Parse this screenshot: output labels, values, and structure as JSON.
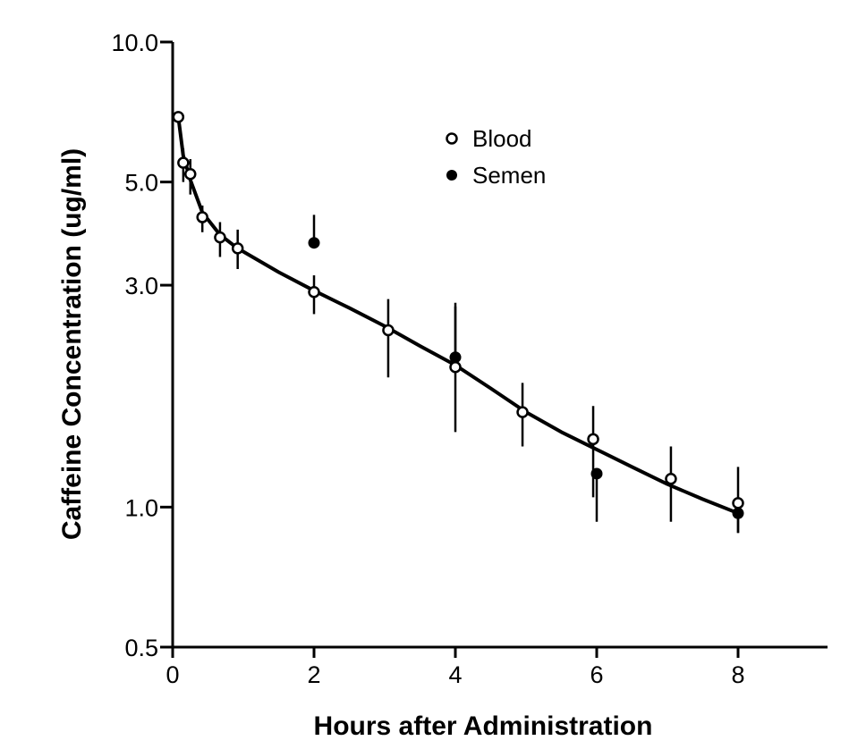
{
  "chart_data": {
    "type": "scatter",
    "xlabel": "Hours after Administration",
    "ylabel": "Caffeine Concentration (ug/ml)",
    "xlim": [
      0,
      9.2
    ],
    "ylim": [
      0.5,
      10.0
    ],
    "yscale": "log",
    "x_ticks": [
      0,
      2,
      4,
      6,
      8
    ],
    "x_tick_labels": [
      "0",
      "2",
      "4",
      "6",
      "8"
    ],
    "y_ticks": [
      0.5,
      1.0,
      3.0,
      5.0,
      10.0
    ],
    "y_tick_labels": [
      "0.5",
      "1.0",
      "3.0",
      "5.0",
      "10.0"
    ],
    "grid": false,
    "legend_position": "top-center",
    "series": [
      {
        "name": "Blood",
        "marker": "open-circle",
        "color": "#000000",
        "x": [
          0.08,
          0.15,
          0.25,
          0.42,
          0.67,
          0.92,
          2.0,
          3.05,
          4.0,
          4.95,
          5.95,
          7.05,
          8.0
        ],
        "y": [
          6.9,
          5.5,
          5.2,
          4.2,
          3.8,
          3.6,
          2.9,
          2.4,
          2.0,
          1.6,
          1.4,
          1.15,
          1.02
        ],
        "y_err_low": [
          null,
          5.0,
          4.7,
          3.9,
          3.45,
          3.25,
          2.6,
          1.9,
          1.45,
          1.35,
          1.05,
          0.93,
          0.88
        ],
        "y_err_high": [
          null,
          5.9,
          5.6,
          4.45,
          4.1,
          3.95,
          3.15,
          2.8,
          2.7,
          1.85,
          1.65,
          1.35,
          1.22
        ]
      },
      {
        "name": "Semen",
        "marker": "filled-circle",
        "color": "#000000",
        "x": [
          2.0,
          4.0,
          6.0,
          8.0
        ],
        "y": [
          3.7,
          2.1,
          1.18,
          0.97
        ],
        "y_err_low": [
          null,
          null,
          0.93,
          0.88
        ],
        "y_err_high": [
          4.25,
          2.75,
          null,
          null
        ]
      }
    ],
    "fit_line": {
      "x": [
        0.08,
        0.15,
        0.25,
        0.42,
        0.67,
        0.92,
        1.5,
        2.0,
        2.5,
        3.0,
        3.5,
        4.0,
        4.5,
        5.0,
        5.5,
        6.0,
        6.5,
        7.0,
        7.5,
        8.0
      ],
      "y": [
        6.9,
        5.7,
        5.05,
        4.3,
        3.85,
        3.6,
        3.2,
        2.92,
        2.68,
        2.45,
        2.22,
        2.02,
        1.8,
        1.6,
        1.45,
        1.33,
        1.22,
        1.12,
        1.04,
        0.97
      ]
    }
  }
}
